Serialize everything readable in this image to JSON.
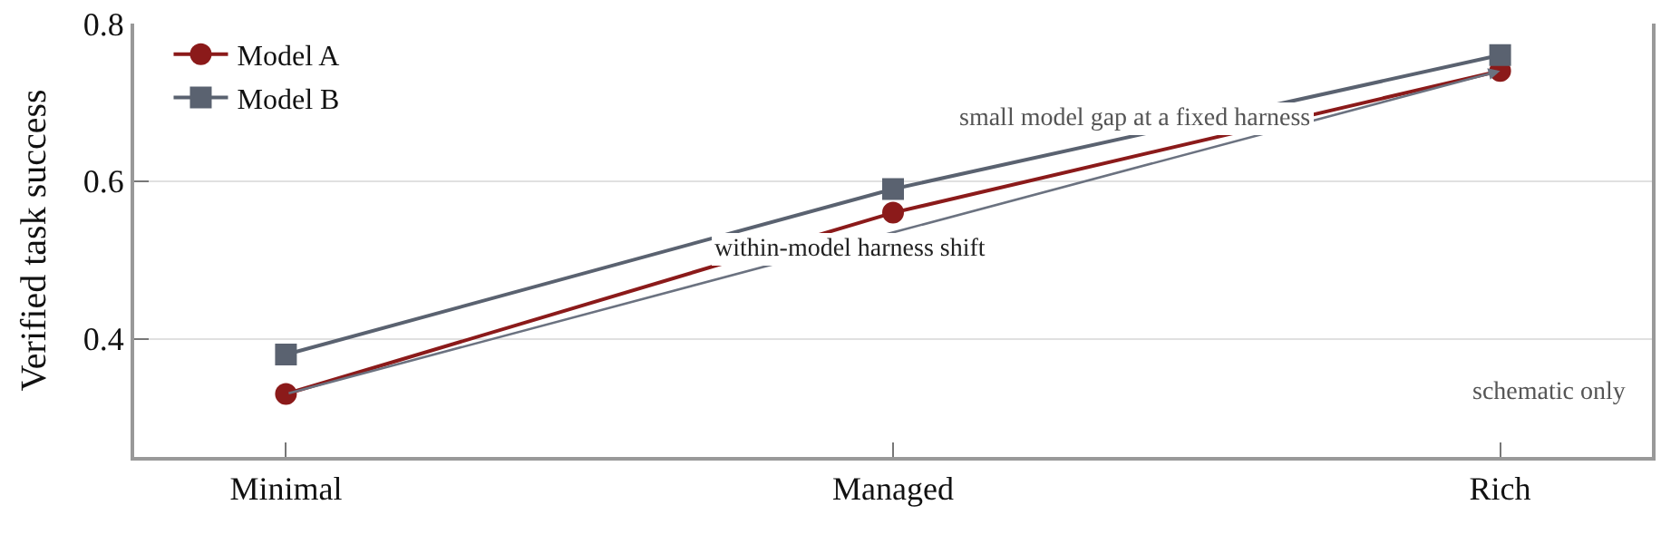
{
  "chart_data": {
    "type": "line",
    "ylabel": "Verified task success",
    "categories": [
      "Minimal",
      "Managed",
      "Rich"
    ],
    "series": [
      {
        "name": "Model A",
        "color": "#8b1a1a",
        "marker": "circle",
        "values": [
          0.33,
          0.56,
          0.74
        ]
      },
      {
        "name": "Model B",
        "color": "#5a6270",
        "marker": "square",
        "values": [
          0.38,
          0.59,
          0.76
        ]
      }
    ],
    "ylim": [
      0.25,
      0.8
    ],
    "yticks": [
      0.4,
      0.6,
      0.8
    ],
    "grid": "y",
    "legend": "top left",
    "line_style": "solid",
    "annotations": [
      "within-model harness shift",
      "small model gap at a fixed harness",
      "schematic only"
    ]
  }
}
